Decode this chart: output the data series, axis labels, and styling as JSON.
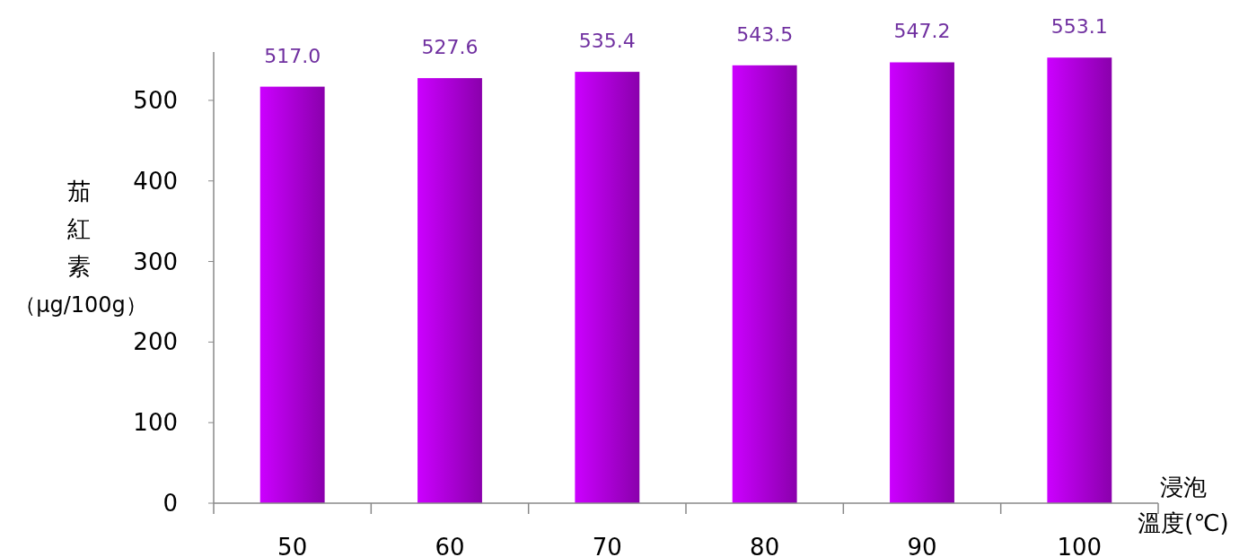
{
  "chart_data": {
    "type": "bar",
    "xlabel": "浸泡溫度(℃)",
    "ylabel": "茄紅素（μg/100g）",
    "categories": [
      "50",
      "60",
      "70",
      "80",
      "90",
      "100"
    ],
    "values": [
      517.0,
      527.6,
      535.4,
      543.5,
      547.2,
      553.1
    ],
    "value_labels": [
      "517.0",
      "527.6",
      "535.4",
      "543.5",
      "547.2",
      "553.1"
    ],
    "color": "#cc00ff",
    "ylim": [
      0,
      560
    ],
    "yticks": [
      0,
      100,
      200,
      300,
      400,
      500
    ],
    "grid": false
  }
}
